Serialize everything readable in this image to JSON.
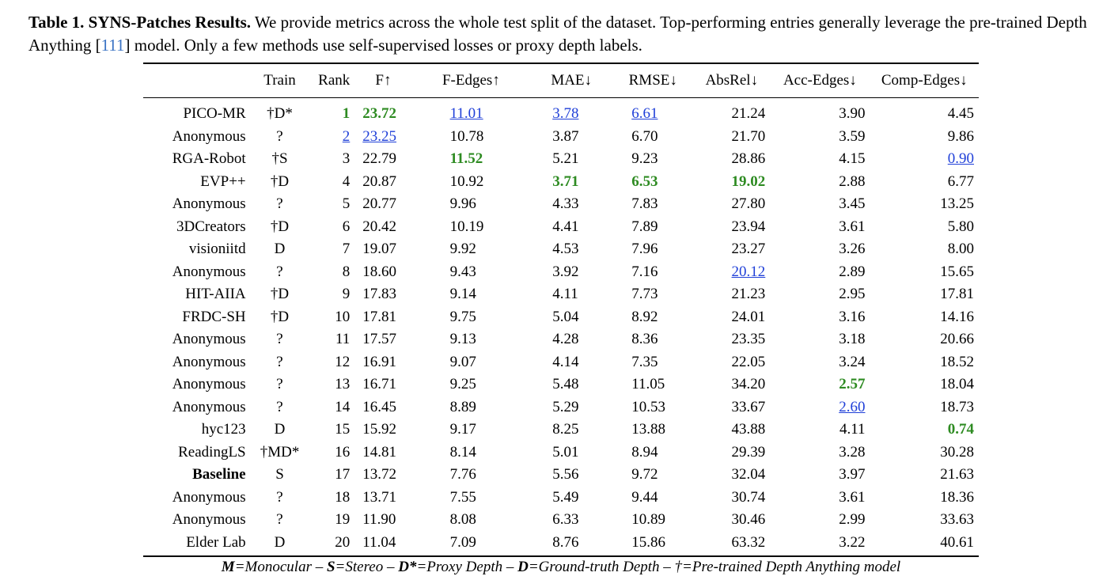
{
  "caption": {
    "label": "Table 1. SYNS-Patches Results.",
    "text_before_cite": " We provide metrics across the whole test split of the dataset. Top-performing entries generally leverage the pre-trained Depth Anything [",
    "cite": "111",
    "text_after_cite": "] model. Only a few methods use self-supervised losses or proxy depth labels."
  },
  "columns": [
    "",
    "Train",
    "Rank",
    "F↑",
    "F-Edges↑",
    "MAE↓",
    "RMSE↓",
    "AbsRel↓",
    "Acc-Edges↓",
    "Comp-Edges↓"
  ],
  "rows": [
    {
      "team": "PICO-MR",
      "train": "†D*",
      "rank": "1",
      "f": "23.72",
      "fedges": "11.01",
      "mae": "3.78",
      "rmse": "6.61",
      "absrel": "21.24",
      "acc": "3.90",
      "comp": "4.45"
    },
    {
      "team": "Anonymous",
      "train": "?",
      "rank": "2",
      "f": "23.25",
      "fedges": "10.78",
      "mae": "3.87",
      "rmse": "6.70",
      "absrel": "21.70",
      "acc": "3.59",
      "comp": "9.86"
    },
    {
      "team": "RGA-Robot",
      "train": "†S",
      "rank": "3",
      "f": "22.79",
      "fedges": "11.52",
      "mae": "5.21",
      "rmse": "9.23",
      "absrel": "28.86",
      "acc": "4.15",
      "comp": "0.90"
    },
    {
      "team": "EVP++",
      "train": "†D",
      "rank": "4",
      "f": "20.87",
      "fedges": "10.92",
      "mae": "3.71",
      "rmse": "6.53",
      "absrel": "19.02",
      "acc": "2.88",
      "comp": "6.77"
    },
    {
      "team": "Anonymous",
      "train": "?",
      "rank": "5",
      "f": "20.77",
      "fedges": "9.96",
      "mae": "4.33",
      "rmse": "7.83",
      "absrel": "27.80",
      "acc": "3.45",
      "comp": "13.25"
    },
    {
      "team": "3DCreators",
      "train": "†D",
      "rank": "6",
      "f": "20.42",
      "fedges": "10.19",
      "mae": "4.41",
      "rmse": "7.89",
      "absrel": "23.94",
      "acc": "3.61",
      "comp": "5.80"
    },
    {
      "team": "visioniitd",
      "train": "D",
      "rank": "7",
      "f": "19.07",
      "fedges": "9.92",
      "mae": "4.53",
      "rmse": "7.96",
      "absrel": "23.27",
      "acc": "3.26",
      "comp": "8.00"
    },
    {
      "team": "Anonymous",
      "train": "?",
      "rank": "8",
      "f": "18.60",
      "fedges": "9.43",
      "mae": "3.92",
      "rmse": "7.16",
      "absrel": "20.12",
      "acc": "2.89",
      "comp": "15.65"
    },
    {
      "team": "HIT-AIIA",
      "train": "†D",
      "rank": "9",
      "f": "17.83",
      "fedges": "9.14",
      "mae": "4.11",
      "rmse": "7.73",
      "absrel": "21.23",
      "acc": "2.95",
      "comp": "17.81"
    },
    {
      "team": "FRDC-SH",
      "train": "†D",
      "rank": "10",
      "f": "17.81",
      "fedges": "9.75",
      "mae": "5.04",
      "rmse": "8.92",
      "absrel": "24.01",
      "acc": "3.16",
      "comp": "14.16"
    },
    {
      "team": "Anonymous",
      "train": "?",
      "rank": "11",
      "f": "17.57",
      "fedges": "9.13",
      "mae": "4.28",
      "rmse": "8.36",
      "absrel": "23.35",
      "acc": "3.18",
      "comp": "20.66"
    },
    {
      "team": "Anonymous",
      "train": "?",
      "rank": "12",
      "f": "16.91",
      "fedges": "9.07",
      "mae": "4.14",
      "rmse": "7.35",
      "absrel": "22.05",
      "acc": "3.24",
      "comp": "18.52"
    },
    {
      "team": "Anonymous",
      "train": "?",
      "rank": "13",
      "f": "16.71",
      "fedges": "9.25",
      "mae": "5.48",
      "rmse": "11.05",
      "absrel": "34.20",
      "acc": "2.57",
      "comp": "18.04"
    },
    {
      "team": "Anonymous",
      "train": "?",
      "rank": "14",
      "f": "16.45",
      "fedges": "8.89",
      "mae": "5.29",
      "rmse": "10.53",
      "absrel": "33.67",
      "acc": "2.60",
      "comp": "18.73"
    },
    {
      "team": "hyc123",
      "train": "D",
      "rank": "15",
      "f": "15.92",
      "fedges": "9.17",
      "mae": "8.25",
      "rmse": "13.88",
      "absrel": "43.88",
      "acc": "4.11",
      "comp": "0.74"
    },
    {
      "team": "ReadingLS",
      "train": "†MD*",
      "rank": "16",
      "f": "14.81",
      "fedges": "8.14",
      "mae": "5.01",
      "rmse": "8.94",
      "absrel": "29.39",
      "acc": "3.28",
      "comp": "30.28"
    },
    {
      "team": "Baseline",
      "train": "S",
      "rank": "17",
      "f": "13.72",
      "fedges": "7.76",
      "mae": "5.56",
      "rmse": "9.72",
      "absrel": "32.04",
      "acc": "3.97",
      "comp": "21.63"
    },
    {
      "team": "Anonymous",
      "train": "?",
      "rank": "18",
      "f": "13.71",
      "fedges": "7.55",
      "mae": "5.49",
      "rmse": "9.44",
      "absrel": "30.74",
      "acc": "3.61",
      "comp": "18.36"
    },
    {
      "team": "Anonymous",
      "train": "?",
      "rank": "19",
      "f": "11.90",
      "fedges": "8.08",
      "mae": "6.33",
      "rmse": "10.89",
      "absrel": "30.46",
      "acc": "2.99",
      "comp": "33.63"
    },
    {
      "team": "Elder Lab",
      "train": "D",
      "rank": "20",
      "f": "11.04",
      "fedges": "7.09",
      "mae": "8.76",
      "rmse": "15.86",
      "absrel": "63.32",
      "acc": "3.22",
      "comp": "40.61"
    }
  ],
  "highlights": {
    "best_color": "#2e8b22",
    "second_color": "#1f3fd8",
    "best": [
      [
        0,
        "rank"
      ],
      [
        0,
        "f"
      ],
      [
        2,
        "fedges"
      ],
      [
        3,
        "mae"
      ],
      [
        3,
        "rmse"
      ],
      [
        3,
        "absrel"
      ],
      [
        12,
        "acc"
      ],
      [
        14,
        "comp"
      ]
    ],
    "second": [
      [
        1,
        "rank"
      ],
      [
        1,
        "f"
      ],
      [
        0,
        "fedges"
      ],
      [
        0,
        "mae"
      ],
      [
        0,
        "rmse"
      ],
      [
        7,
        "absrel"
      ],
      [
        13,
        "acc"
      ],
      [
        2,
        "comp"
      ]
    ],
    "bold_names": [
      16
    ]
  },
  "legend": [
    {
      "key": "M",
      "desc": "=Monocular"
    },
    {
      "key": "S",
      "desc": "=Stereo"
    },
    {
      "key": "D*",
      "desc": "=Proxy Depth"
    },
    {
      "key": "D",
      "desc": "=Ground-truth Depth"
    },
    {
      "key": "",
      "desc": "†=Pre-trained Depth Anything model"
    }
  ],
  "legend_separator": " – "
}
